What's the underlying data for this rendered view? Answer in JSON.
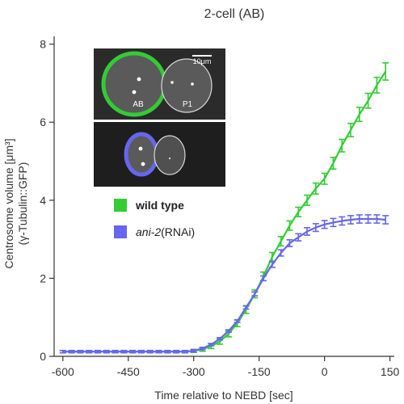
{
  "chart_data": {
    "type": "line",
    "title": "2-cell (AB)",
    "xlabel": "Time relative to NEBD [sec]",
    "ylabel": {
      "line1": "Centrosome volume [μm³]",
      "line2": "(γ-Tubulin::GFP)"
    },
    "xlim": [
      -620,
      160
    ],
    "ylim": [
      0,
      8.2
    ],
    "xticks": [
      -600,
      -450,
      -300,
      -150,
      0,
      150
    ],
    "xtick_labels": [
      "-600",
      "-450",
      "-300",
      "-150",
      "0",
      "150"
    ],
    "yticks": [
      0,
      2,
      4,
      6,
      8
    ],
    "ytick_labels": [
      "0",
      "2",
      "4",
      "6",
      "8"
    ],
    "grid": false,
    "legend": {
      "placement": "center-left",
      "entries": [
        {
          "label": "wild type",
          "bold": true,
          "color": "#33cc33"
        },
        {
          "label_italic": "ani-2",
          "label_rest": "(RNAi)",
          "color": "#6666ee"
        }
      ]
    },
    "series": [
      {
        "name": "wild type",
        "color": "#33cc33",
        "x": [
          -600,
          -580,
          -560,
          -540,
          -520,
          -500,
          -480,
          -460,
          -440,
          -420,
          -400,
          -380,
          -360,
          -340,
          -320,
          -300,
          -280,
          -260,
          -240,
          -220,
          -200,
          -180,
          -160,
          -140,
          -120,
          -100,
          -80,
          -60,
          -40,
          -20,
          0,
          20,
          40,
          60,
          80,
          100,
          120,
          140
        ],
        "y": [
          0.12,
          0.12,
          0.12,
          0.12,
          0.12,
          0.12,
          0.12,
          0.12,
          0.12,
          0.12,
          0.12,
          0.12,
          0.12,
          0.12,
          0.12,
          0.14,
          0.18,
          0.26,
          0.38,
          0.58,
          0.85,
          1.2,
          1.6,
          2.05,
          2.55,
          2.95,
          3.35,
          3.7,
          4.0,
          4.3,
          4.55,
          4.95,
          5.4,
          5.8,
          6.2,
          6.55,
          6.95,
          7.3
        ],
        "err": [
          0.03,
          0.03,
          0.03,
          0.03,
          0.03,
          0.03,
          0.03,
          0.03,
          0.03,
          0.03,
          0.03,
          0.03,
          0.03,
          0.03,
          0.03,
          0.04,
          0.05,
          0.06,
          0.07,
          0.08,
          0.09,
          0.1,
          0.1,
          0.11,
          0.11,
          0.12,
          0.12,
          0.12,
          0.13,
          0.14,
          0.14,
          0.15,
          0.16,
          0.17,
          0.18,
          0.19,
          0.2,
          0.22
        ]
      },
      {
        "name": "ani-2(RNAi)",
        "color": "#6666ee",
        "x": [
          -600,
          -580,
          -560,
          -540,
          -520,
          -500,
          -480,
          -460,
          -440,
          -420,
          -400,
          -380,
          -360,
          -340,
          -320,
          -300,
          -280,
          -260,
          -240,
          -220,
          -200,
          -180,
          -160,
          -140,
          -120,
          -100,
          -80,
          -60,
          -40,
          -20,
          0,
          20,
          40,
          60,
          80,
          100,
          120,
          140
        ],
        "y": [
          0.12,
          0.12,
          0.12,
          0.12,
          0.12,
          0.12,
          0.12,
          0.12,
          0.12,
          0.12,
          0.12,
          0.12,
          0.12,
          0.12,
          0.12,
          0.14,
          0.2,
          0.3,
          0.45,
          0.65,
          0.9,
          1.25,
          1.6,
          2.0,
          2.35,
          2.65,
          2.9,
          3.05,
          3.2,
          3.3,
          3.38,
          3.43,
          3.47,
          3.5,
          3.52,
          3.52,
          3.52,
          3.5
        ]
      }
    ],
    "inset": {
      "scale_bar_label": "10μm",
      "top_panel_labels": [
        "AB",
        "P1"
      ]
    }
  }
}
